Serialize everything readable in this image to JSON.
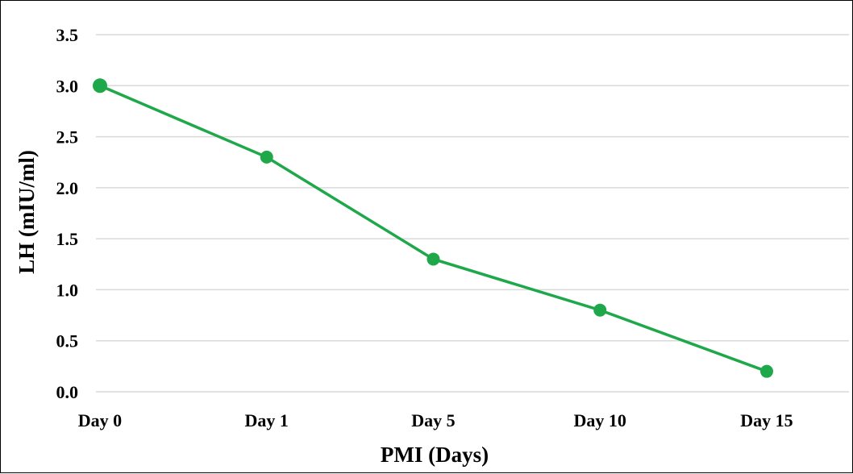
{
  "chart_data": {
    "type": "line",
    "categories": [
      "Day 0",
      "Day 1",
      "Day 5",
      "Day 10",
      "Day 15"
    ],
    "series": [
      {
        "values": [
          3.0,
          2.3,
          1.3,
          0.8,
          0.2
        ],
        "color": "#1ea84a"
      }
    ],
    "y_ticks": [
      "0.0",
      "0.5",
      "1.0",
      "1.5",
      "2.0",
      "2.5",
      "3.0",
      "3.5"
    ],
    "ylim": [
      0,
      3.5
    ],
    "xlabel": "PMI (Days)",
    "ylabel": "LH (mIU/ml)",
    "grid": "horizontal",
    "legend": "none",
    "gridline_color": "#d9d9d9"
  }
}
